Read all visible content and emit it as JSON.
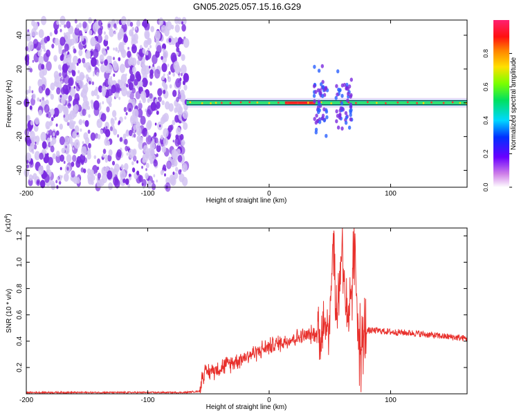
{
  "title": "GN05.2025.057.15.16.G29",
  "colors": {
    "snr_line": "#e8302c",
    "axis": "#000000",
    "spec_purple": "#7a2be0",
    "spec_light": "#d4c4f2"
  },
  "chart_data": [
    {
      "type": "heatmap",
      "title": "GN05.2025.057.15.16.G29",
      "xlabel": "Height of straight line (km)",
      "ylabel": "Frequency (Hz)",
      "xlim": [
        -200,
        163
      ],
      "ylim": [
        -50,
        49
      ],
      "x_ticks": [
        -200,
        -100,
        0,
        100
      ],
      "y_ticks": [
        -40,
        -20,
        0,
        20,
        40
      ],
      "x_tick_labels": [
        "-200",
        "-100",
        "0",
        "100"
      ],
      "y_tick_labels": [
        "-40",
        "-20",
        "0",
        "20",
        "40"
      ],
      "colorbar": {
        "label": "Normalized spectral amplitude",
        "range": [
          0,
          1
        ],
        "ticks": [
          0.0,
          0.2,
          0.4,
          0.6,
          0.8
        ],
        "tick_labels": [
          "0.0",
          "0.2",
          "0.4",
          "0.6",
          "0.8"
        ],
        "colormap": "rainbow (white-violet-blue-cyan-green-yellow-orange-red-pink)"
      },
      "features": {
        "noise_region_x": [
          -200,
          -68
        ],
        "signal_line_frequency_hz": 0,
        "signal_start_x": -68,
        "red_core_x": [
          13,
          38
        ],
        "bursts_x": [
          [
            37,
            48
          ],
          [
            55,
            68
          ]
        ]
      }
    },
    {
      "type": "line",
      "xlabel": "Height of straight line (km)",
      "ylabel": "SNR (10 * v/v)",
      "y_scale_label": "(x10",
      "y_scale_exponent": "4",
      "xlim": [
        -200,
        163
      ],
      "ylim": [
        0,
        1.26
      ],
      "x_ticks": [
        -200,
        -100,
        0,
        100
      ],
      "y_ticks": [
        0.2,
        0.4,
        0.6,
        0.8,
        1.0,
        1.2
      ],
      "x_tick_labels": [
        "-200",
        "-100",
        "0",
        "100"
      ],
      "y_tick_labels": [
        "0.2",
        "0.4",
        "0.6",
        "0.8",
        "1.0",
        "1.2"
      ],
      "series": [
        {
          "x": [
            -200,
            -150,
            -100,
            -70,
            -57,
            -55,
            -40,
            -20,
            0,
            20,
            35,
            40,
            45,
            50,
            53,
            55,
            60,
            65,
            70,
            75,
            80,
            90,
            100,
            120,
            140,
            163
          ],
          "values": [
            0.01,
            0.01,
            0.01,
            0.01,
            0.02,
            0.15,
            0.2,
            0.28,
            0.36,
            0.42,
            0.45,
            0.46,
            0.48,
            0.6,
            1.26,
            0.5,
            1.15,
            0.4,
            1.1,
            0.3,
            0.48,
            0.48,
            0.47,
            0.46,
            0.44,
            0.42
          ]
        }
      ]
    }
  ]
}
